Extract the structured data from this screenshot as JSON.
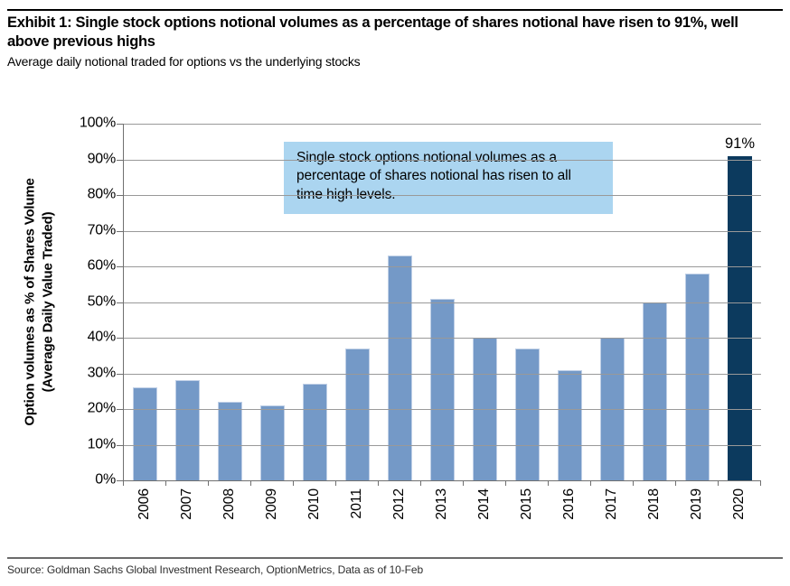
{
  "header": {
    "title": "Exhibit 1: Single stock options notional volumes as a percentage of shares notional have risen to 91%, well above previous highs",
    "subtitle": "Average daily notional traded for options vs the underlying stocks"
  },
  "chart_data": {
    "type": "bar",
    "categories": [
      "2006",
      "2007",
      "2008",
      "2009",
      "2010",
      "2011",
      "2012",
      "2013",
      "2014",
      "2015",
      "2016",
      "2017",
      "2018",
      "2019",
      "2020"
    ],
    "values": [
      26,
      28,
      22,
      21,
      27,
      37,
      63,
      51,
      40,
      37,
      31,
      40,
      50,
      58,
      91
    ],
    "title": "",
    "xlabel": "",
    "ylabel_line1": "Option volumes as % of Shares Volume",
    "ylabel_line2": "(Average Daily Value Traded)",
    "ylim": [
      0,
      100
    ],
    "ytick_step": 10,
    "ytick_suffix": "%",
    "grid": "horizontal",
    "legend": "none",
    "highlight_index": 14,
    "value_label": "91%",
    "annotation": "Single stock options notional volumes as a percentage of shares notional has risen to all time high levels.",
    "colors": {
      "bar": "#7499C7",
      "bar_edge": "#BFCFE6",
      "highlight_bar": "#0C3A5E",
      "annotation_bg": "#ABD5F0",
      "gridline": "#999999",
      "axis": "#707070"
    }
  },
  "footer": {
    "source": "Source: Goldman Sachs Global Investment Research, OptionMetrics, Data as of 10-Feb"
  }
}
